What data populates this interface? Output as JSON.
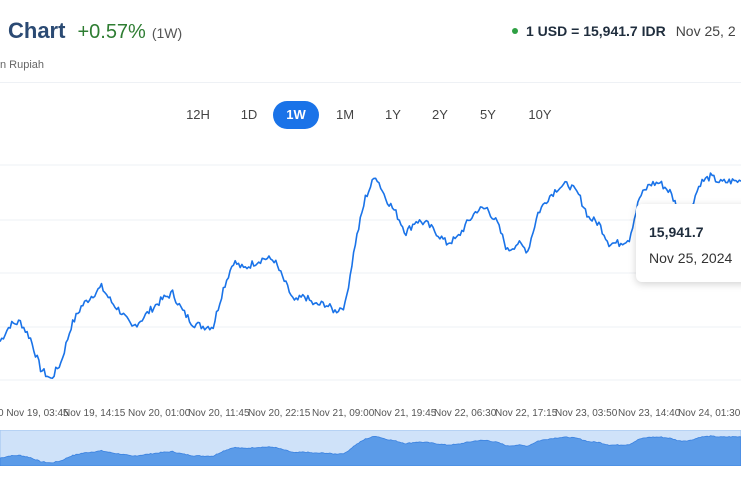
{
  "header": {
    "title": "Chart",
    "change": "+0.57%",
    "period": "(1W)",
    "subtitle": "n Rupiah",
    "rate": "1 USD = 15,941.7 IDR",
    "rate_date": "Nov 25, 2",
    "colors": {
      "title": "#2b4a73",
      "change": "#2e7d32",
      "live_dot": "#2ea043"
    }
  },
  "ranges": [
    "12H",
    "1D",
    "1W",
    "1M",
    "1Y",
    "2Y",
    "5Y",
    "10Y"
  ],
  "active_range": "1W",
  "tooltip": {
    "value": "15,941.7",
    "date": "Nov 25, 2024"
  },
  "chart_data": {
    "type": "line",
    "title": "",
    "xlabel": "",
    "ylabel": "",
    "y_axis_shown": false,
    "grid": "horizontal",
    "x_tick_labels": [
      "0 Nov 19, 03:45",
      "Nov 19, 14:15",
      "Nov 20, 01:00",
      "Nov 20, 11:45",
      "Nov 20, 22:15",
      "Nov 21, 09:00",
      "Nov 21, 19:45",
      "Nov 22, 06:30",
      "Nov 22, 17:15",
      "Nov 23, 03:50",
      "Nov 23, 14:40",
      "Nov 24, 01:30"
    ],
    "series": [
      {
        "color": "#1a73e8",
        "values": [
          15840,
          15851,
          15853,
          15842,
          15822,
          15815,
          15826,
          15850,
          15863,
          15870,
          15876,
          15866,
          15859,
          15849,
          15855,
          15862,
          15868,
          15872,
          15860,
          15852,
          15850,
          15850,
          15875,
          15893,
          15888,
          15892,
          15895,
          15894,
          15880,
          15866,
          15870,
          15864,
          15865,
          15860,
          15864,
          15905,
          15935,
          15950,
          15935,
          15925,
          15912,
          15920,
          15918,
          15912,
          15905,
          15908,
          15918,
          15927,
          15928,
          15918,
          15900,
          15905,
          15900,
          15925,
          15935,
          15942,
          15944,
          15937,
          15922,
          15918,
          15905,
          15905,
          15908,
          15935,
          15944,
          15945,
          15939,
          15925,
          15928,
          15945,
          15949,
          15945,
          15946,
          15946
        ]
      }
    ],
    "hover_value": 15941.7
  }
}
